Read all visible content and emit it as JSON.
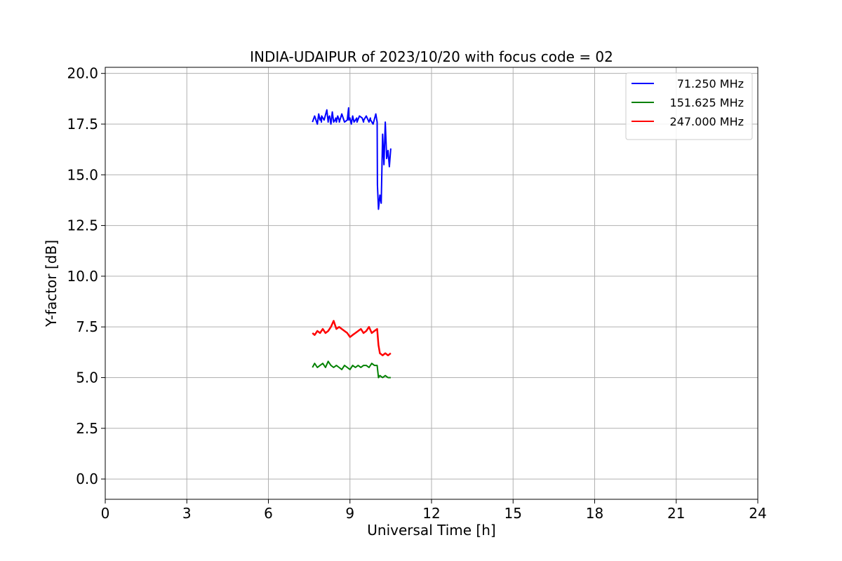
{
  "chart_data": {
    "type": "line",
    "title": "INDIA-UDAIPUR of 2023/10/20 with focus code = 02",
    "xlabel": "Universal Time [h]",
    "ylabel": "Y-factor [dB]",
    "xlim": [
      0,
      24
    ],
    "ylim": [
      -1.0,
      20.3
    ],
    "xticks": [
      0,
      3,
      6,
      9,
      12,
      15,
      18,
      21,
      24
    ],
    "yticks": [
      0.0,
      2.5,
      5.0,
      7.5,
      10.0,
      12.5,
      15.0,
      17.5,
      20.0
    ],
    "xtick_labels": [
      "0",
      "3",
      "6",
      "9",
      "12",
      "15",
      "18",
      "21",
      "24"
    ],
    "ytick_labels": [
      "0.0",
      "2.5",
      "5.0",
      "7.5",
      "10.0",
      "12.5",
      "15.0",
      "17.5",
      "20.0"
    ],
    "grid": true,
    "legend_position": "top-right",
    "series": [
      {
        "name": "71.250 MHz",
        "color": "#0000ff",
        "x": [
          7.62,
          7.7,
          7.8,
          7.85,
          7.9,
          7.93,
          7.95,
          7.96,
          8.05,
          8.15,
          8.2,
          8.21,
          8.25,
          8.3,
          8.35,
          8.4,
          8.45,
          8.48,
          8.5,
          8.55,
          8.6,
          8.61,
          8.7,
          8.8,
          8.9,
          8.95,
          8.96,
          9.0,
          9.05,
          9.1,
          9.15,
          9.2,
          9.25,
          9.26,
          9.35,
          9.45,
          9.5,
          9.51,
          9.6,
          9.7,
          9.75,
          9.76,
          9.85,
          9.95,
          10.0,
          10.01,
          10.05,
          10.1,
          10.15,
          10.2,
          10.25,
          10.3,
          10.35,
          10.4,
          10.45,
          10.5
        ],
        "y": [
          17.6,
          17.9,
          17.5,
          18.0,
          17.7,
          17.8,
          17.6,
          17.9,
          17.7,
          18.2,
          17.6,
          17.8,
          17.9,
          17.5,
          18.1,
          17.6,
          17.7,
          17.8,
          17.6,
          17.9,
          17.7,
          17.6,
          18.0,
          17.6,
          17.7,
          18.3,
          17.7,
          17.8,
          17.5,
          17.9,
          17.6,
          17.7,
          17.8,
          17.6,
          17.9,
          17.8,
          17.6,
          17.7,
          17.9,
          17.6,
          17.8,
          17.7,
          17.5,
          18.0,
          17.6,
          14.5,
          13.3,
          14.0,
          13.6,
          17.0,
          15.5,
          17.6,
          15.8,
          16.2,
          15.4,
          16.3
        ]
      },
      {
        "name": "151.625 MHz",
        "color": "#008000",
        "x": [
          7.62,
          7.7,
          7.8,
          7.9,
          8.0,
          8.1,
          8.2,
          8.3,
          8.4,
          8.5,
          8.6,
          8.7,
          8.8,
          8.9,
          9.0,
          9.1,
          9.2,
          9.3,
          9.4,
          9.5,
          9.6,
          9.7,
          9.8,
          9.9,
          10.0,
          10.05,
          10.1,
          10.2,
          10.3,
          10.4,
          10.5
        ],
        "y": [
          5.5,
          5.7,
          5.5,
          5.6,
          5.7,
          5.5,
          5.8,
          5.6,
          5.5,
          5.6,
          5.5,
          5.4,
          5.6,
          5.5,
          5.4,
          5.6,
          5.5,
          5.6,
          5.5,
          5.6,
          5.6,
          5.5,
          5.7,
          5.6,
          5.6,
          5.0,
          5.1,
          5.0,
          5.1,
          5.0,
          5.0
        ]
      },
      {
        "name": "247.000 MHz",
        "color": "#ff0000",
        "x": [
          7.62,
          7.7,
          7.8,
          7.9,
          8.0,
          8.1,
          8.2,
          8.3,
          8.4,
          8.5,
          8.6,
          8.7,
          8.8,
          8.9,
          9.0,
          9.1,
          9.2,
          9.3,
          9.4,
          9.5,
          9.6,
          9.7,
          9.8,
          9.9,
          10.0,
          10.05,
          10.1,
          10.2,
          10.3,
          10.4,
          10.5
        ],
        "y": [
          7.2,
          7.1,
          7.3,
          7.2,
          7.4,
          7.2,
          7.3,
          7.5,
          7.8,
          7.4,
          7.5,
          7.4,
          7.3,
          7.2,
          7.0,
          7.1,
          7.2,
          7.3,
          7.4,
          7.2,
          7.3,
          7.5,
          7.2,
          7.3,
          7.4,
          6.6,
          6.2,
          6.1,
          6.2,
          6.1,
          6.2
        ]
      }
    ]
  }
}
